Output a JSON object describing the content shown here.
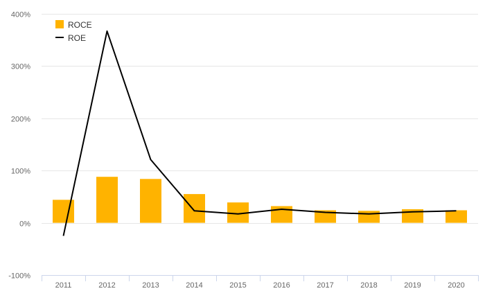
{
  "chart_data": {
    "type": "bar",
    "categories": [
      "2011",
      "2012",
      "2013",
      "2014",
      "2015",
      "2016",
      "2017",
      "2018",
      "2019",
      "2020"
    ],
    "series": [
      {
        "name": "ROCE",
        "type": "bar",
        "color": "#FFB300",
        "values": [
          44,
          88,
          84,
          55,
          39,
          32,
          24,
          23,
          26,
          24
        ]
      },
      {
        "name": "ROE",
        "type": "line",
        "color": "#000000",
        "values": [
          -25,
          367,
          121,
          23,
          17,
          26,
          20,
          17,
          21,
          23
        ]
      }
    ],
    "ylim": [
      -100,
      400
    ],
    "yticks": [
      "-100%",
      "0%",
      "100%",
      "200%",
      "300%",
      "400%"
    ],
    "ytick_values": [
      -100,
      0,
      100,
      200,
      300,
      400
    ],
    "grid": true,
    "legend": "top-left"
  }
}
